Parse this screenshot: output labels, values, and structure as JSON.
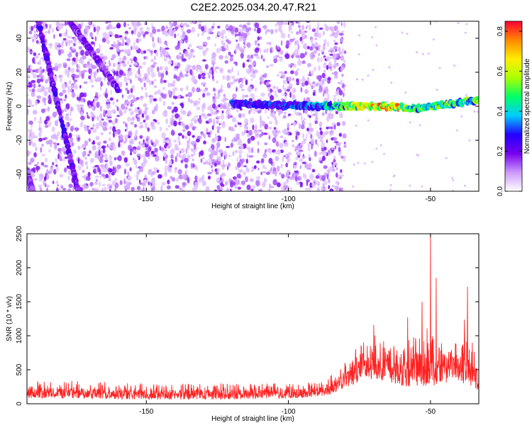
{
  "title": "C2E2.2025.034.20.47.R21",
  "chart_data": [
    {
      "type": "heatmap",
      "xlabel": "Height of straight line (km)",
      "ylabel": "Frequency (Hz)",
      "xlim": [
        -192,
        -33
      ],
      "ylim": [
        -50,
        50
      ],
      "xticks": [
        -150,
        -100,
        -50
      ],
      "yticks": [
        -40,
        -20,
        0,
        20,
        40
      ],
      "colorbar": {
        "label": "Normalized spectral amplitude",
        "range": [
          0,
          0.85
        ],
        "ticks": [
          "0.0",
          "0.2",
          "0.4",
          "0.6",
          "0.8"
        ],
        "tick_values": [
          0.0,
          0.2,
          0.4,
          0.6,
          0.8
        ],
        "colors": [
          "#ffffff",
          "#cc99ff",
          "#7700ee",
          "#2200ff",
          "#00ccff",
          "#00ff66",
          "#aaff00",
          "#ffee00",
          "#ff8800",
          "#ff0033"
        ]
      },
      "features": [
        {
          "name": "main-carrier",
          "x": [
            -120,
            -100,
            -80,
            -65,
            -55,
            -45,
            -33
          ],
          "y": [
            1.5,
            0.5,
            0,
            0,
            -1.5,
            1,
            3.5
          ],
          "amplitude": [
            0.3,
            0.3,
            0.5,
            0.8,
            0.5,
            0.55,
            0.5
          ]
        },
        {
          "name": "steep-trace-1",
          "x": [
            -188,
            -174
          ],
          "y": [
            50,
            -50
          ],
          "amplitude": 0.25
        },
        {
          "name": "steep-trace-2",
          "x": [
            -177,
            -160
          ],
          "y": [
            50,
            10
          ],
          "amplitude": 0.2
        },
        {
          "name": "steep-trace-3",
          "x": [
            -192,
            -190
          ],
          "y": [
            -38,
            -50
          ],
          "amplitude": 0.2
        }
      ],
      "noise_region": {
        "x": [
          -192,
          -80
        ],
        "amplitude": [
          0.05,
          0.2
        ]
      }
    },
    {
      "type": "line",
      "xlabel": "Height of straight line (km)",
      "ylabel": "SNR (10 * v/v)",
      "xlim": [
        -192,
        -33
      ],
      "ylim": [
        0,
        2500
      ],
      "xticks": [
        -150,
        -100,
        -50
      ],
      "yticks": [
        0,
        500,
        1000,
        1500,
        2000,
        2500
      ],
      "series": [
        {
          "name": "SNR",
          "color": "#ff2222",
          "envelope_x": [
            -192,
            -175,
            -150,
            -125,
            -100,
            -90,
            -85,
            -80,
            -75,
            -70,
            -65,
            -60,
            -55,
            -50,
            -45,
            -40,
            -38,
            -35,
            -33
          ],
          "envelope_low": [
            80,
            80,
            60,
            60,
            80,
            100,
            140,
            240,
            320,
            380,
            320,
            260,
            240,
            260,
            300,
            330,
            260,
            240,
            200
          ],
          "envelope_high": [
            330,
            340,
            300,
            300,
            300,
            320,
            420,
            620,
            880,
            1020,
            900,
            820,
            1100,
            1250,
            1000,
            900,
            1500,
            950,
            780
          ],
          "spikes": [
            [
              -53,
              1500
            ],
            [
              -50,
              2500
            ],
            [
              -48,
              1850
            ],
            [
              -37,
              1720
            ],
            [
              -70,
              1160
            ],
            [
              -58,
              1270
            ]
          ]
        }
      ]
    }
  ]
}
